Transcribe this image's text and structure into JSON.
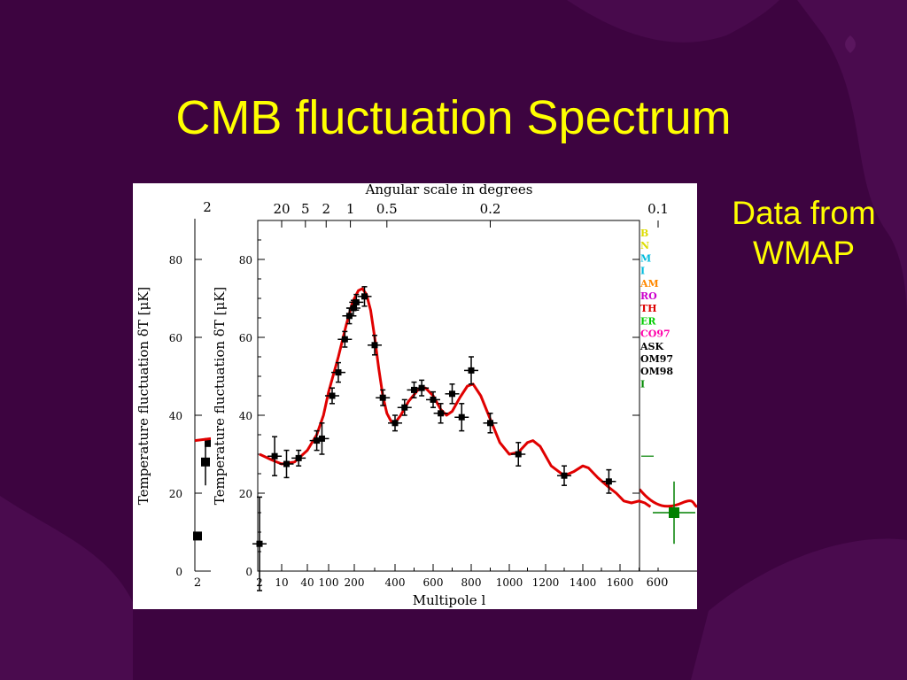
{
  "slide": {
    "title": "CMB fluctuation Spectrum",
    "note_line1": "Data from",
    "note_line2": "WMAP"
  },
  "colors": {
    "background": "#3d0440",
    "title": "#ffff00",
    "model_curve": "#e00000",
    "points": "#000000",
    "green_point": "#008000"
  },
  "chart_data": {
    "type": "scatter",
    "top_axis_label": "Angular scale in degrees",
    "top_ticks": [
      {
        "label": "20",
        "l": 10
      },
      {
        "label": "5",
        "l": 36
      },
      {
        "label": "2",
        "l": 90
      },
      {
        "label": "1",
        "l": 180
      },
      {
        "label": "0.5",
        "l": 360
      },
      {
        "label": "0.2",
        "l": 900
      },
      {
        "label": "0.1",
        "l": 1800
      }
    ],
    "xlabel": "Multipole l",
    "ylabel": "Temperature fluctuation δT  [μK]",
    "ylim": [
      0,
      90
    ],
    "y_ticks": [
      0,
      20,
      40,
      60,
      80
    ],
    "x_ticks": [
      {
        "label": "2",
        "l": 2
      },
      {
        "label": "10",
        "l": 10
      },
      {
        "label": "40",
        "l": 40
      },
      {
        "label": "100",
        "l": 100
      },
      {
        "label": "200",
        "l": 200
      },
      {
        "label": "400",
        "l": 400
      },
      {
        "label": "600",
        "l": 600
      },
      {
        "label": "800",
        "l": 800
      },
      {
        "label": "1000",
        "l": 1000
      },
      {
        "label": "1200",
        "l": 1200
      },
      {
        "label": "1400",
        "l": 1400
      },
      {
        "label": "1600",
        "l": 1600
      }
    ],
    "series": [
      {
        "kind": "data",
        "points": [
          {
            "l": 2,
            "y": 7,
            "err": 12
          },
          {
            "l": 6,
            "y": 29.5,
            "err": 5
          },
          {
            "l": 13,
            "y": 27.5,
            "err": 3.5
          },
          {
            "l": 25,
            "y": 29,
            "err": 2
          },
          {
            "l": 60,
            "y": 33.5,
            "err": 2.5
          },
          {
            "l": 75,
            "y": 34,
            "err": 4
          },
          {
            "l": 110,
            "y": 45,
            "err": 2
          },
          {
            "l": 130,
            "y": 51,
            "err": 2.5
          },
          {
            "l": 155,
            "y": 59.5,
            "err": 2
          },
          {
            "l": 175,
            "y": 65.5,
            "err": 2
          },
          {
            "l": 195,
            "y": 67.5,
            "err": 2
          },
          {
            "l": 210,
            "y": 69,
            "err": 2
          },
          {
            "l": 250,
            "y": 70.5,
            "err": 2.5
          },
          {
            "l": 300,
            "y": 58,
            "err": 2.5
          },
          {
            "l": 340,
            "y": 44.5,
            "err": 2
          },
          {
            "l": 400,
            "y": 38,
            "err": 2
          },
          {
            "l": 450,
            "y": 42,
            "err": 2
          },
          {
            "l": 500,
            "y": 46.5,
            "err": 2
          },
          {
            "l": 540,
            "y": 47,
            "err": 2
          },
          {
            "l": 600,
            "y": 44,
            "err": 2
          },
          {
            "l": 640,
            "y": 40.5,
            "err": 2.5
          },
          {
            "l": 700,
            "y": 45.5,
            "err": 2.5
          },
          {
            "l": 750,
            "y": 39.5,
            "err": 3.5
          },
          {
            "l": 800,
            "y": 51.5,
            "err": 3.5
          },
          {
            "l": 900,
            "y": 38,
            "err": 2.5
          },
          {
            "l": 1050,
            "y": 30,
            "err": 3
          },
          {
            "l": 1300,
            "y": 24.5,
            "err": 2.5
          },
          {
            "l": 1540,
            "y": 23,
            "err": 3
          }
        ]
      },
      {
        "kind": "model",
        "points": [
          [
            2,
            30
          ],
          [
            5,
            28.5
          ],
          [
            10,
            27.5
          ],
          [
            20,
            28
          ],
          [
            40,
            31
          ],
          [
            60,
            35
          ],
          [
            80,
            40
          ],
          [
            100,
            46
          ],
          [
            130,
            55
          ],
          [
            160,
            63
          ],
          [
            190,
            69
          ],
          [
            220,
            72
          ],
          [
            240,
            72.5
          ],
          [
            260,
            71
          ],
          [
            280,
            67
          ],
          [
            300,
            60
          ],
          [
            320,
            52
          ],
          [
            340,
            45
          ],
          [
            360,
            40.5
          ],
          [
            380,
            38.5
          ],
          [
            400,
            38
          ],
          [
            430,
            40
          ],
          [
            470,
            43.5
          ],
          [
            520,
            46.5
          ],
          [
            560,
            47
          ],
          [
            600,
            45
          ],
          [
            640,
            41.5
          ],
          [
            670,
            40
          ],
          [
            700,
            41
          ],
          [
            740,
            44.5
          ],
          [
            780,
            47.5
          ],
          [
            810,
            48
          ],
          [
            850,
            45
          ],
          [
            900,
            39
          ],
          [
            950,
            33
          ],
          [
            1000,
            30
          ],
          [
            1050,
            30.5
          ],
          [
            1100,
            33
          ],
          [
            1130,
            33.5
          ],
          [
            1170,
            32
          ],
          [
            1230,
            27
          ],
          [
            1300,
            24.5
          ],
          [
            1350,
            25.5
          ],
          [
            1400,
            27
          ],
          [
            1430,
            26.5
          ],
          [
            1480,
            24
          ],
          [
            1540,
            21.5
          ],
          [
            1580,
            20
          ],
          [
            1620,
            18
          ],
          [
            1660,
            17.5
          ],
          [
            1700,
            18
          ],
          [
            1730,
            17.5
          ],
          [
            1760,
            16.5
          ]
        ]
      }
    ],
    "legend_fragments": [
      {
        "text": "B",
        "color": "#dddd00"
      },
      {
        "text": "N",
        "color": "#dddd00"
      },
      {
        "text": "M",
        "color": "#00bbdd"
      },
      {
        "text": "I",
        "color": "#00bbdd"
      },
      {
        "text": "AM",
        "color": "#ff8800"
      },
      {
        "text": "RO",
        "color": "#cc00cc"
      },
      {
        "text": "TH",
        "color": "#dd0000"
      },
      {
        "text": "ER",
        "color": "#00cc00"
      },
      {
        "text": "CO97",
        "color": "#ff00aa"
      },
      {
        "text": "ASK",
        "color": "#000000"
      },
      {
        "text": "OM97",
        "color": "#000000"
      },
      {
        "text": "OM98",
        "color": "#000000"
      },
      {
        "text": "I",
        "color": "#008800"
      }
    ],
    "back_panel_left": {
      "ylabel": "Temperature fluctuation δT  [μK]",
      "y_ticks": [
        0,
        20,
        40,
        60,
        80
      ],
      "x_tick_label": "2",
      "top_tick_label": "2",
      "points": [
        {
          "y": 9
        },
        {
          "y": 28,
          "err": 6
        },
        {
          "y": 33
        }
      ]
    },
    "back_panel_right": {
      "x_tick_label": "600",
      "green_point": {
        "y": 15,
        "err": 8
      }
    }
  }
}
